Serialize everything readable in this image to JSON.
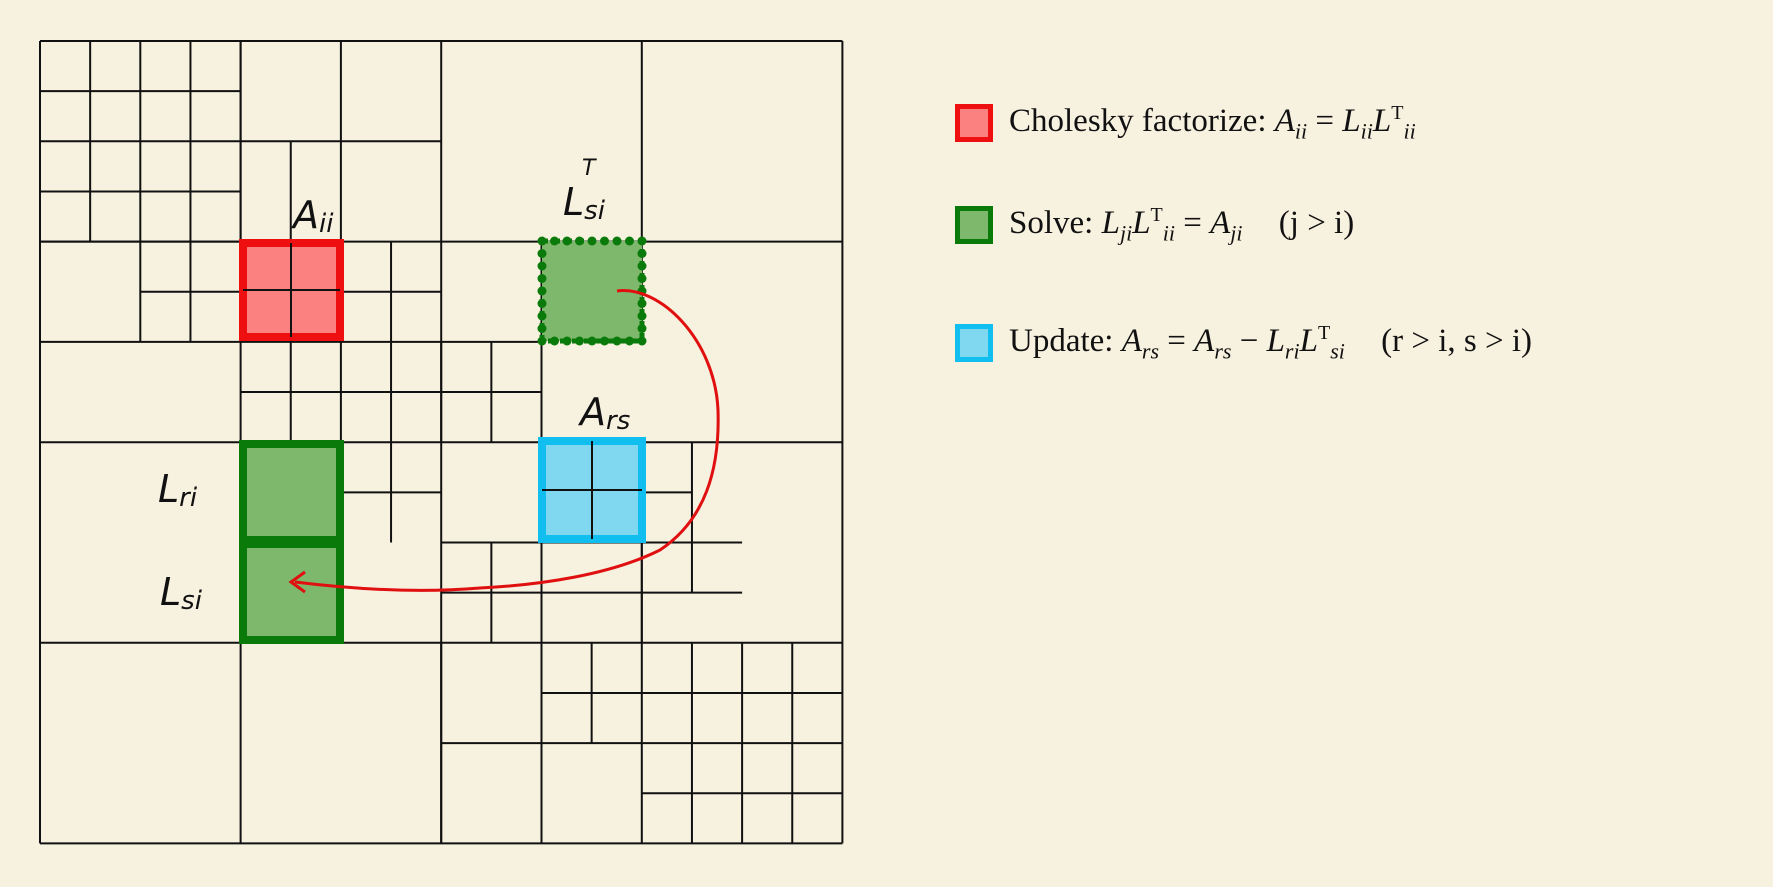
{
  "colors": {
    "background": "#f7f1df",
    "grid_line": "#111111",
    "factorize_fill": "#fb8080",
    "factorize_border": "#ee1010",
    "solve_fill": "#7db86c",
    "solve_border": "#0a7a0a",
    "update_fill": "#7fd8ef",
    "update_border": "#10bff0",
    "arrow": "#e01010"
  },
  "labels": {
    "aii": {
      "main": "A",
      "sub": "ii"
    },
    "lsi_t": {
      "main": "L",
      "sub": "si",
      "sup": "T"
    },
    "ars": {
      "main": "A",
      "sub": "rs"
    },
    "lri": {
      "main": "L",
      "sub": "ri"
    },
    "lsi": {
      "main": "L",
      "sub": "si"
    }
  },
  "legend": {
    "factorize": {
      "prefix": "Cholesky factorize:",
      "lhs": "A",
      "lhs_sub": "ii",
      "eq": "=",
      "r1": "L",
      "r1_sub": "ii",
      "r2": "L",
      "r2_sub": "ii",
      "r2_sup": "T"
    },
    "solve": {
      "prefix": "Solve:",
      "l1": "L",
      "l1_sub": "ji",
      "l2": "L",
      "l2_sub": "ii",
      "l2_sup": "T",
      "eq": "=",
      "rhs": "A",
      "rhs_sub": "ji",
      "cond": "(j > i)"
    },
    "update": {
      "prefix": "Update:",
      "lhs": "A",
      "lhs_sub": "rs",
      "eq": "=",
      "r1": "A",
      "r1_sub": "rs",
      "minus": "−",
      "r2": "L",
      "r2_sub": "ri",
      "r3": "L",
      "r3_sub": "si",
      "r3_sup": "T",
      "cond": "(r > i, s > i)"
    }
  }
}
